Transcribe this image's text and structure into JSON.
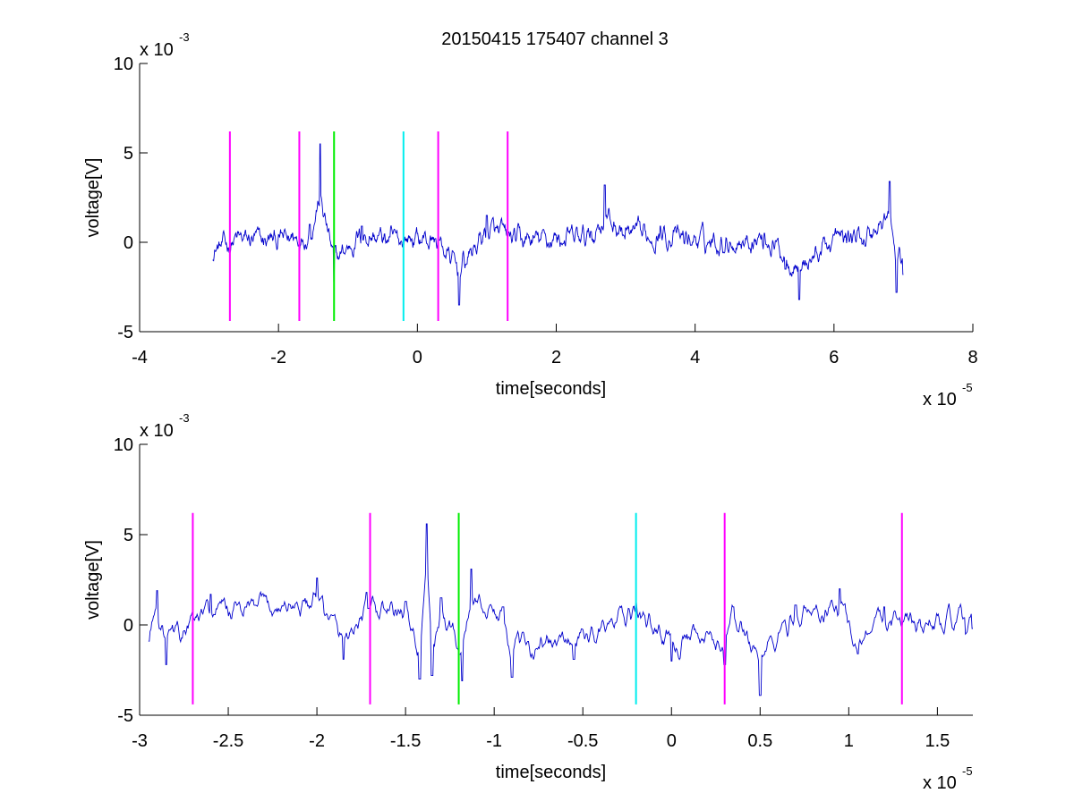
{
  "figure_title": "20150415 175407 channel 3",
  "chart_data": [
    {
      "type": "line",
      "title": "20150415 175407 channel 3",
      "xlabel": "time[seconds]",
      "ylabel": "voltage[V]",
      "x_exponent": "x 10",
      "x_exponent_power": "-5",
      "y_exponent": "x 10",
      "y_exponent_power": "-3",
      "xlim": [
        -4,
        8
      ],
      "ylim": [
        -5,
        10
      ],
      "xticks": [
        -4,
        -2,
        0,
        2,
        4,
        6,
        8
      ],
      "xtick_labels": [
        "-4",
        "-2",
        "0",
        "2",
        "4",
        "6",
        "8"
      ],
      "yticks": [
        -5,
        0,
        5,
        10
      ],
      "ytick_labels": [
        "-5",
        "0",
        "5",
        "10"
      ],
      "grid": false,
      "series": [
        {
          "color": "#0000cc",
          "x_range": [
            -2.95,
            7.0
          ],
          "x": [
            -2.95,
            -2.6,
            -2.2,
            -1.8,
            -1.55,
            -1.4,
            -1.2,
            -0.8,
            -0.4,
            0.0,
            0.3,
            0.6,
            1.0,
            1.5,
            2.0,
            2.5,
            2.7,
            3.0,
            3.5,
            4.0,
            4.5,
            5.0,
            5.3,
            5.5,
            6.0,
            6.5,
            6.8,
            6.9,
            7.0
          ],
          "y": [
            -1.0,
            0.3,
            0.2,
            0.5,
            1.0,
            5.5,
            -2.2,
            0.9,
            0.3,
            0.5,
            0.1,
            -3.5,
            1.5,
            0.2,
            0.4,
            0.6,
            3.2,
            0.8,
            0.9,
            0.3,
            0.0,
            0.5,
            -1.5,
            -3.2,
            0.4,
            0.8,
            3.4,
            -2.8,
            -1.8
          ]
        }
      ],
      "markers": [
        {
          "x": -2.7,
          "color": "#ff00ff",
          "ymin": -4.4,
          "ymax": 6.2
        },
        {
          "x": -1.7,
          "color": "#ff00ff",
          "ymin": -4.4,
          "ymax": 6.2
        },
        {
          "x": -1.2,
          "color": "#00ee00",
          "ymin": -4.4,
          "ymax": 6.2
        },
        {
          "x": -0.2,
          "color": "#00eeee",
          "ymin": -4.4,
          "ymax": 6.2
        },
        {
          "x": 0.3,
          "color": "#ff00ff",
          "ymin": -4.4,
          "ymax": 6.2
        },
        {
          "x": 1.3,
          "color": "#ff00ff",
          "ymin": -4.4,
          "ymax": 6.2
        }
      ]
    },
    {
      "type": "line",
      "title": "",
      "xlabel": "time[seconds]",
      "ylabel": "voltage[V]",
      "x_exponent": "x 10",
      "x_exponent_power": "-5",
      "y_exponent": "x 10",
      "y_exponent_power": "-3",
      "xlim": [
        -3.0,
        1.7
      ],
      "ylim": [
        -5,
        10
      ],
      "xticks": [
        -3,
        -2.5,
        -2,
        -1.5,
        -1,
        -0.5,
        0,
        0.5,
        1,
        1.5
      ],
      "xtick_labels": [
        "-3",
        "-2.5",
        "-2",
        "-1.5",
        "-1",
        "-0.5",
        "0",
        "0.5",
        "1",
        "1.5"
      ],
      "yticks": [
        -5,
        0,
        5,
        10
      ],
      "ytick_labels": [
        "-5",
        "0",
        "5",
        "10"
      ],
      "grid": false,
      "series": [
        {
          "color": "#0000cc",
          "x_range": [
            -2.95,
            1.7
          ],
          "x": [
            -2.95,
            -2.9,
            -2.85,
            -2.6,
            -2.0,
            -1.85,
            -1.72,
            -1.5,
            -1.42,
            -1.38,
            -1.35,
            -1.3,
            -1.18,
            -1.13,
            -0.95,
            -0.9,
            -0.55,
            -0.2,
            0.0,
            0.3,
            0.35,
            0.5,
            0.7,
            0.95,
            1.05,
            1.2,
            1.4,
            1.65,
            1.7
          ],
          "y": [
            -0.9,
            1.9,
            -2.2,
            1.7,
            2.6,
            -1.9,
            1.8,
            1.3,
            -3.0,
            5.6,
            -2.8,
            1.5,
            -3.1,
            3.1,
            1.0,
            -2.9,
            -1.9,
            1.2,
            -2.0,
            -2.2,
            1.0,
            -3.9,
            1.1,
            2.0,
            -1.6,
            1.0,
            0.3,
            0.4,
            -0.2
          ]
        }
      ],
      "markers": [
        {
          "x": -2.7,
          "color": "#ff00ff",
          "ymin": -4.4,
          "ymax": 6.2
        },
        {
          "x": -1.7,
          "color": "#ff00ff",
          "ymin": -4.4,
          "ymax": 6.2
        },
        {
          "x": -1.2,
          "color": "#00ee00",
          "ymin": -4.4,
          "ymax": 6.2
        },
        {
          "x": -0.2,
          "color": "#00eeee",
          "ymin": -4.4,
          "ymax": 6.2
        },
        {
          "x": 0.3,
          "color": "#ff00ff",
          "ymin": -4.4,
          "ymax": 6.2
        },
        {
          "x": 1.3,
          "color": "#ff00ff",
          "ymin": -4.4,
          "ymax": 6.2
        }
      ]
    }
  ]
}
